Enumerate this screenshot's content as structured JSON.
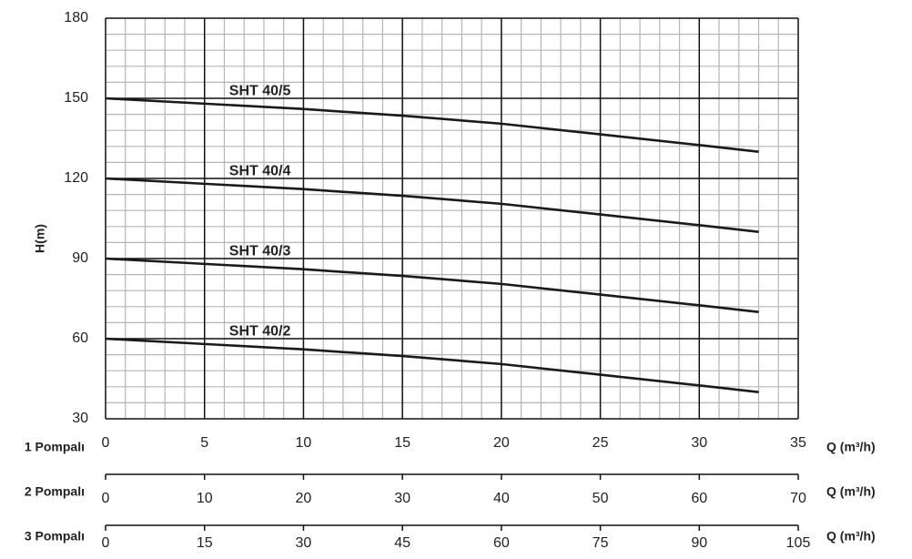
{
  "chart_data": {
    "type": "line",
    "y_label": "H(m)",
    "ylim": [
      30,
      180
    ],
    "yticks": [
      30,
      60,
      90,
      120,
      150,
      180
    ],
    "yminor_ticks": [
      36,
      42,
      48,
      54,
      66,
      72,
      78,
      84,
      96,
      102,
      108,
      114,
      126,
      132,
      138,
      144,
      156,
      162,
      168,
      174
    ],
    "xminor_ticks": [
      1,
      2,
      3,
      4,
      6,
      7,
      8,
      9,
      11,
      12,
      13,
      14,
      16,
      17,
      18,
      19,
      21,
      22,
      23,
      24,
      26,
      27,
      28,
      29,
      31,
      32,
      33,
      34
    ],
    "grid": true,
    "x_axes": [
      {
        "name": "1 Pompalı",
        "label": "Q (m³/h)",
        "lim": [
          0,
          35
        ],
        "ticks": [
          0,
          5,
          10,
          15,
          20,
          25,
          30,
          35
        ]
      },
      {
        "name": "2 Pompalı",
        "label": "Q (m³/h)",
        "lim": [
          0,
          70
        ],
        "ticks": [
          0,
          10,
          20,
          30,
          40,
          50,
          60,
          70
        ]
      },
      {
        "name": "3 Pompalı",
        "label": "Q (m³/h)",
        "lim": [
          0,
          105
        ],
        "ticks": [
          0,
          15,
          30,
          45,
          60,
          75,
          90,
          105
        ]
      }
    ],
    "x": [
      0,
      5,
      10,
      15,
      20,
      25,
      30,
      33
    ],
    "series": [
      {
        "name": "SHT 40/5",
        "color": "#1a1a1a",
        "values": [
          150,
          148,
          146,
          143.5,
          140.5,
          136.5,
          132.5,
          130
        ]
      },
      {
        "name": "SHT 40/4",
        "color": "#1a1a1a",
        "values": [
          120,
          118,
          116,
          113.5,
          110.5,
          106.5,
          102.5,
          100
        ]
      },
      {
        "name": "SHT 40/3",
        "color": "#1a1a1a",
        "values": [
          90,
          88,
          86,
          83.5,
          80.5,
          76.5,
          72.5,
          70
        ]
      },
      {
        "name": "SHT 40/2",
        "color": "#1a1a1a",
        "values": [
          60,
          58,
          56,
          53.5,
          50.5,
          46.5,
          42.5,
          40
        ]
      }
    ]
  }
}
